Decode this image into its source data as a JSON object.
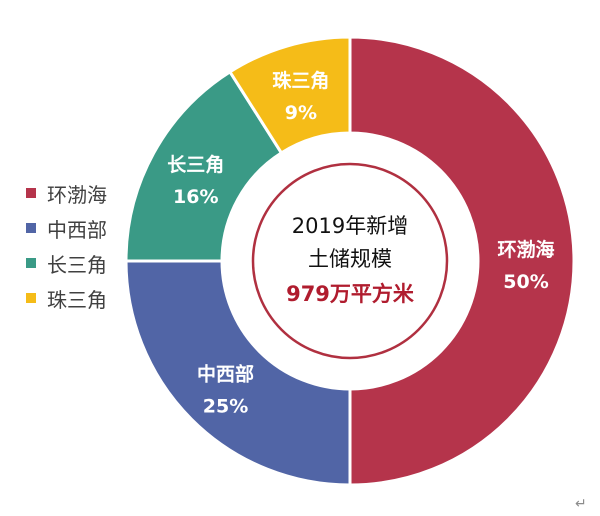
{
  "chart_data": {
    "type": "pie",
    "variant": "donut",
    "categories": [
      "环渤海",
      "中西部",
      "长三角",
      "珠三角"
    ],
    "values": [
      50,
      25,
      16,
      9
    ],
    "value_labels": [
      "50%",
      "25%",
      "16%",
      "9%"
    ],
    "colors": [
      "#b5344b",
      "#5165a6",
      "#3a9a86",
      "#f5bc18"
    ],
    "center_text": {
      "line1": "2019年新增",
      "line2": "土储规模",
      "line3": "979万平方米"
    },
    "center_ring_color": "#b03040",
    "center_value_color": "#b01c2e",
    "legend_position": "left"
  },
  "return_mark": "↵"
}
